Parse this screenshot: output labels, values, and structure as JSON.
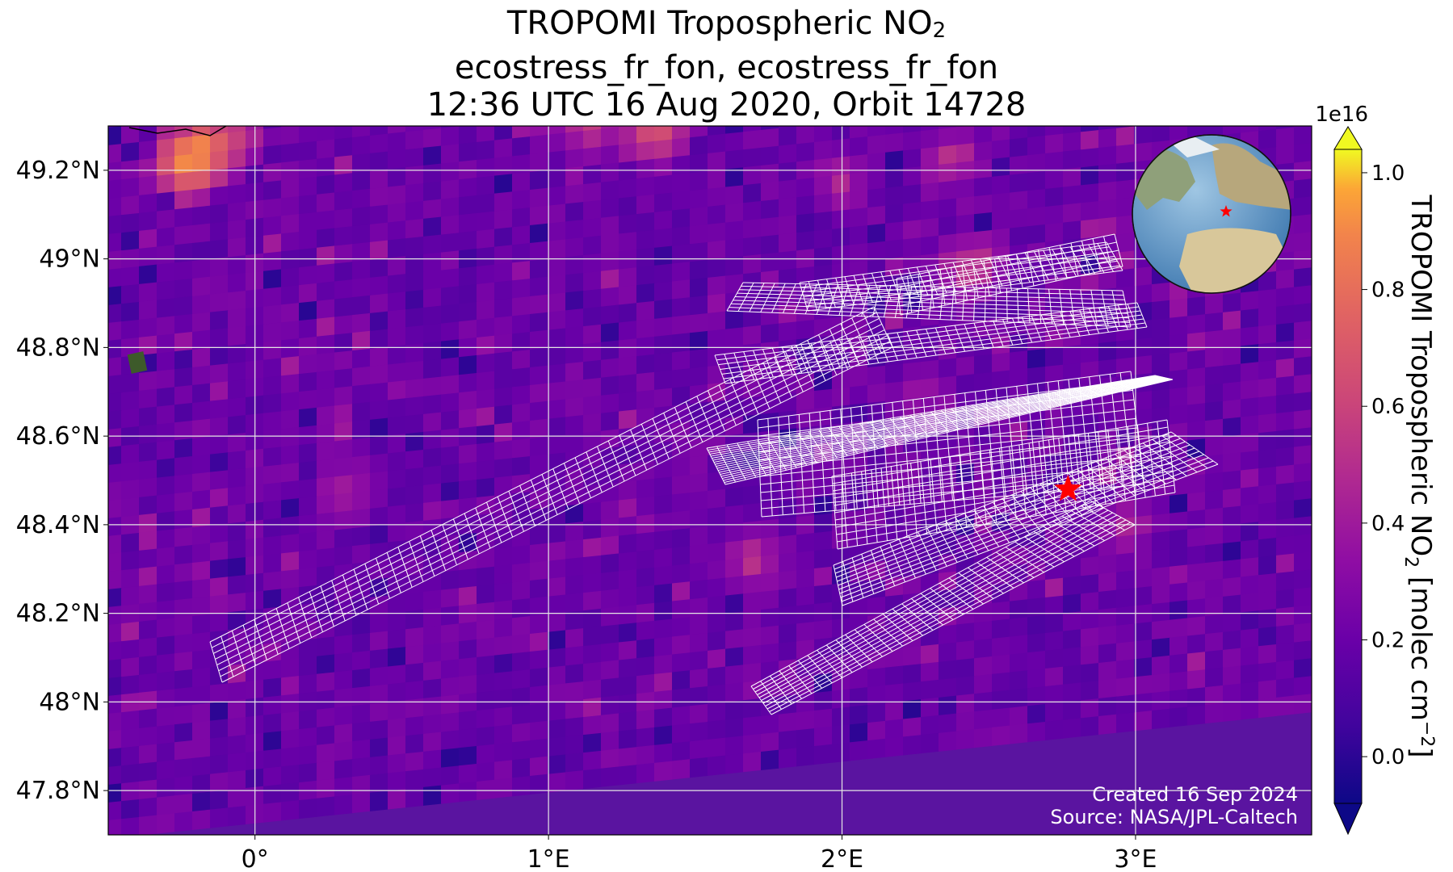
{
  "title": {
    "line1_prefix": "TROPOMI Tropospheric NO",
    "line1_sub": "2",
    "line2": "ecostress_fr_fon, ecostress_fr_fon",
    "line3": "12:36 UTC 16 Aug 2020, Orbit 14728"
  },
  "map": {
    "lon_range": [
      -0.5,
      3.6
    ],
    "lat_range": [
      47.7,
      49.3
    ],
    "x_ticks": [
      {
        "value": 0,
        "label": "0°"
      },
      {
        "value": 1,
        "label": "1°E"
      },
      {
        "value": 2,
        "label": "2°E"
      },
      {
        "value": 3,
        "label": "3°E"
      }
    ],
    "y_ticks": [
      {
        "value": 49.2,
        "label": "49.2°N"
      },
      {
        "value": 49.0,
        "label": "49°N"
      },
      {
        "value": 48.8,
        "label": "48.8°N"
      },
      {
        "value": 48.6,
        "label": "48.6°N"
      },
      {
        "value": 48.4,
        "label": "48.4°N"
      },
      {
        "value": 48.2,
        "label": "48.2°N"
      },
      {
        "value": 48.0,
        "label": "48°N"
      },
      {
        "value": 47.8,
        "label": "47.8°N"
      }
    ],
    "gridlines": true,
    "target_marker": {
      "lon": 2.77,
      "lat": 48.48,
      "color": "#ff0000"
    },
    "credits": {
      "created": "Created 16 Sep 2024",
      "source": "Source: NASA/JPL-Caltech"
    }
  },
  "colorbar": {
    "multiplier": "1e16",
    "label_prefix": "TROPOMI Tropospheric NO",
    "label_sub": "2",
    "label_suffix": " [molec cm",
    "label_sup": "−2",
    "label_end": "]",
    "range": [
      -0.08,
      1.04
    ],
    "ticks": [
      "0.0",
      "0.2",
      "0.4",
      "0.6",
      "0.8",
      "1.0"
    ],
    "tick_values": [
      0.0,
      0.2,
      0.4,
      0.6,
      0.8,
      1.0
    ],
    "colormap": "plasma",
    "extend": "both"
  },
  "inset_globe": {
    "marker_color": "#ff0000"
  },
  "colors": {
    "background_low": "#4a0c9a",
    "grid": "#e6e6e6",
    "footprint_outline": "#ffffff",
    "marker": "#ff0000"
  }
}
